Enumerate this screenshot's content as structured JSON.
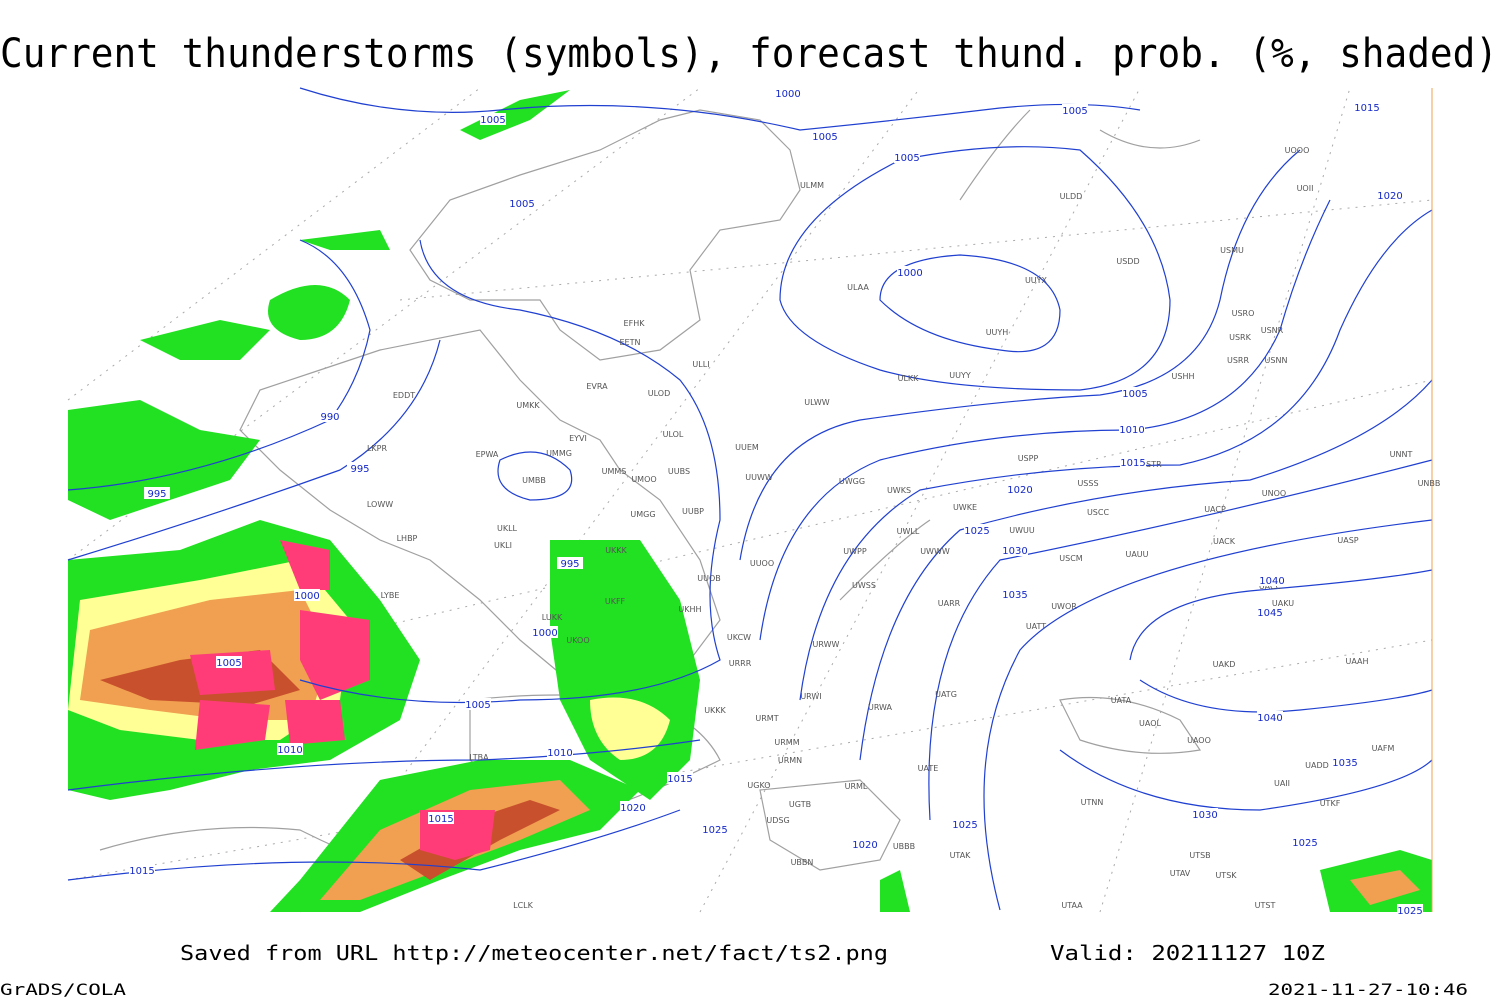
{
  "title": "Current thunderstorms (symbols), forecast thund. prob. (%, shaded)",
  "footer": {
    "source": "Saved from URL http://meteocenter.net/fact/ts2.png",
    "valid": "Valid: 20211127 10Z",
    "software": "GrADS/COLA",
    "timestamp": "2021-11-27-10:46"
  },
  "isobar_labels": [
    "1000",
    "1005",
    "1005",
    "1005",
    "1015",
    "1005",
    "1005",
    "1020",
    "1000",
    "990",
    "995",
    "995",
    "1005",
    "1010",
    "1015",
    "1020",
    "1025",
    "1030",
    "995",
    "1000",
    "1035",
    "1040",
    "1045",
    "1000",
    "1005",
    "1005",
    "1040",
    "1010",
    "1010",
    "1035",
    "1015",
    "1020",
    "1030",
    "1025",
    "1025",
    "1015",
    "1020",
    "1025",
    "1015",
    "1025"
  ],
  "stations": [
    "ULMM",
    "ULDD",
    "UOOO",
    "UOII",
    "USDD",
    "USMU",
    "ULAA",
    "UUYX",
    "USRO",
    "USRK",
    "USNR",
    "UUYH",
    "USRR",
    "USNN",
    "EFHK",
    "EETN",
    "ULLI",
    "ULKK",
    "UUYY",
    "USHH",
    "EVRA",
    "ULOD",
    "EDDT",
    "UMKK",
    "ULWW",
    "ULOL",
    "EYVI",
    "UUEM",
    "LKPR",
    "EPWA",
    "UMMG",
    "USPP",
    "USTR",
    "UMMS",
    "UMOO",
    "UUBS",
    "UUWW",
    "UNNT",
    "UMBB",
    "UWGG",
    "UWKS",
    "USSS",
    "UNOO",
    "UNBB",
    "LOWW",
    "UMGG",
    "UUBP",
    "UWKE",
    "USCC",
    "UACP",
    "UKLL",
    "LHBP",
    "UWLL",
    "UWUU",
    "UACK",
    "UASP",
    "UKLI",
    "UKKK",
    "UWPP",
    "UWWW",
    "USCM",
    "UAUU",
    "UUOO",
    "UUOB",
    "UWSS",
    "UACC",
    "UKFF",
    "UKHH",
    "UARR",
    "UWOR",
    "UAKU",
    "LUKK",
    "UATT",
    "UKOO",
    "UKCW",
    "URWW",
    "UAKD",
    "UAAH",
    "URRR",
    "URWI",
    "UATG",
    "UATA",
    "UKKK",
    "URWA",
    "URMT",
    "UAOL",
    "URMM",
    "UAOO",
    "UAFM",
    "URMN",
    "UATE",
    "UADD",
    "UGKO",
    "URML",
    "UAII",
    "UGTB",
    "UTNN",
    "UTKF",
    "UDSG",
    "UBBB",
    "UTAK",
    "UTSB",
    "UBBN",
    "UTAV",
    "UTSK",
    "LCLK",
    "UTAA",
    "UTST",
    "LTBA",
    "LYBE"
  ]
}
